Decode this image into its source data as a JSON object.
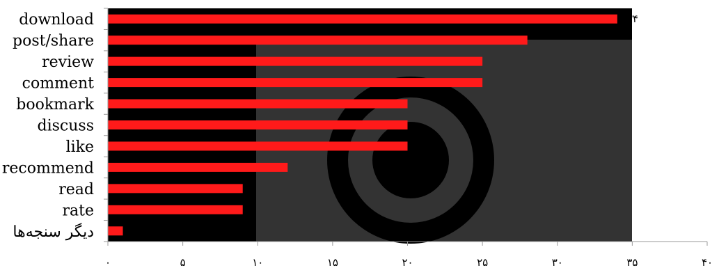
{
  "chart_data": {
    "type": "bar",
    "orientation": "horizontal",
    "categories": [
      "download",
      "post/share",
      "review",
      "comment",
      "bookmark",
      "discuss",
      "like",
      "recommend",
      "read",
      "rate",
      "دیگر سنجه‌ها"
    ],
    "values": [
      34,
      28,
      25,
      25,
      20,
      20,
      20,
      12,
      9,
      9,
      1
    ],
    "xlim": [
      0,
      40
    ],
    "xticks": [
      0,
      5,
      10,
      15,
      20,
      25,
      30,
      35,
      40
    ],
    "xtick_labels": [
      "۰",
      "۵",
      "۱۰",
      "۱۵",
      "۲۰",
      "۲۵",
      "۳۰",
      "۳۵",
      "۴۰"
    ],
    "data_labels": [
      {
        "category": "download",
        "text": "۳۴"
      }
    ],
    "grid": false,
    "colors": {
      "bar": "#ff1a1a",
      "plot_background": "#000000",
      "watermark": "#333333"
    }
  }
}
